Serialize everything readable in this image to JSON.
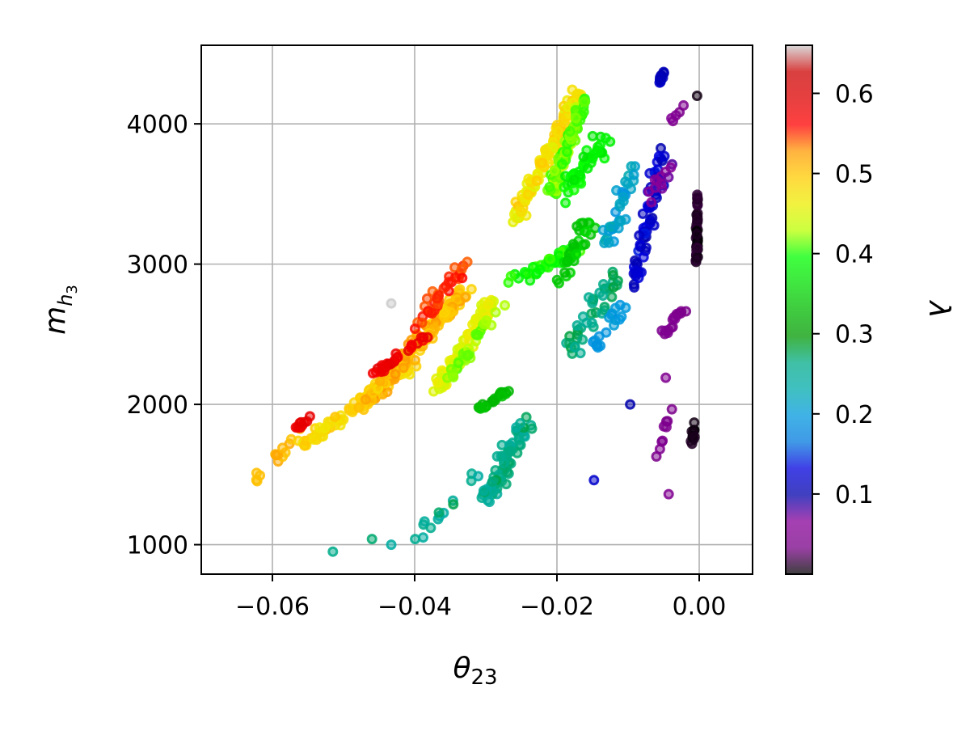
{
  "chart_data": {
    "type": "scatter",
    "xlabel_main": "θ",
    "xlabel_sub": "23",
    "ylabel_main": "m",
    "ylabel_sub": "h",
    "ylabel_subsub": "3",
    "xlim": [
      -0.07,
      0.0075
    ],
    "ylim": [
      790,
      4560
    ],
    "xticks": [
      -0.06,
      -0.04,
      -0.02,
      0.0
    ],
    "xtick_labels": [
      "−0.06",
      "−0.04",
      "−0.02",
      "0.00"
    ],
    "yticks": [
      1000,
      2000,
      3000,
      4000
    ],
    "ytick_labels": [
      "1000",
      "2000",
      "3000",
      "4000"
    ],
    "grid": true,
    "colorbar": {
      "label": "λ",
      "range": [
        0.0,
        0.66
      ],
      "ticks": [
        0.1,
        0.2,
        0.3,
        0.4,
        0.5,
        0.6
      ],
      "tick_labels": [
        "0.1",
        "0.2",
        "0.3",
        "0.4",
        "0.5",
        "0.6"
      ],
      "colormap": "nipy_spectral"
    },
    "clusters": [
      {
        "from": [
          -0.0625,
          1450
        ],
        "to": [
          -0.056,
          1830
        ],
        "n": 14,
        "spread": [
          0.0009,
          35
        ],
        "c": [
          0.5,
          0.52
        ]
      },
      {
        "from": [
          -0.0565,
          1820
        ],
        "to": [
          -0.0545,
          1950
        ],
        "n": 10,
        "spread": [
          0.0006,
          25
        ],
        "c": [
          0.57,
          0.59
        ]
      },
      {
        "from": [
          -0.056,
          1700
        ],
        "to": [
          -0.04,
          2300
        ],
        "n": 80,
        "spread": [
          0.0015,
          50
        ],
        "c": [
          0.47,
          0.5
        ]
      },
      {
        "from": [
          -0.047,
          2000
        ],
        "to": [
          -0.033,
          2800
        ],
        "n": 160,
        "spread": [
          0.0015,
          60
        ],
        "c": [
          0.48,
          0.53
        ]
      },
      {
        "from": [
          -0.046,
          2200
        ],
        "to": [
          -0.038,
          2500
        ],
        "n": 28,
        "spread": [
          0.0009,
          40
        ],
        "c": [
          0.57,
          0.59
        ]
      },
      {
        "from": [
          -0.04,
          2550
        ],
        "to": [
          -0.033,
          3000
        ],
        "n": 35,
        "spread": [
          0.0012,
          60
        ],
        "c": [
          0.54,
          0.56
        ]
      },
      {
        "from": [
          -0.037,
          2100
        ],
        "to": [
          -0.029,
          2750
        ],
        "n": 90,
        "spread": [
          0.0013,
          70
        ],
        "c": [
          0.44,
          0.47
        ]
      },
      {
        "from": [
          -0.035,
          2200
        ],
        "to": [
          -0.028,
          2700
        ],
        "n": 30,
        "spread": [
          0.0012,
          60
        ],
        "c": [
          0.41,
          0.43
        ]
      },
      {
        "from": [
          -0.031,
          1950
        ],
        "to": [
          -0.027,
          2100
        ],
        "n": 22,
        "spread": [
          0.0008,
          30
        ],
        "c": [
          0.32,
          0.34
        ]
      },
      {
        "from": [
          -0.026,
          3300
        ],
        "to": [
          -0.017,
          4230
        ],
        "n": 110,
        "spread": [
          0.0012,
          70
        ],
        "c": [
          0.45,
          0.5
        ]
      },
      {
        "from": [
          -0.021,
          3500
        ],
        "to": [
          -0.016,
          4200
        ],
        "n": 90,
        "spread": [
          0.0011,
          80
        ],
        "c": [
          0.4,
          0.43
        ]
      },
      {
        "from": [
          -0.019,
          3500
        ],
        "to": [
          -0.013,
          3900
        ],
        "n": 45,
        "spread": [
          0.0018,
          120
        ],
        "c": [
          0.37,
          0.4
        ]
      },
      {
        "from": [
          -0.026,
          2900
        ],
        "to": [
          -0.017,
          3100
        ],
        "n": 45,
        "spread": [
          0.0015,
          60
        ],
        "c": [
          0.38,
          0.41
        ]
      },
      {
        "from": [
          -0.02,
          2850
        ],
        "to": [
          -0.015,
          3350
        ],
        "n": 30,
        "spread": [
          0.0014,
          90
        ],
        "c": [
          0.33,
          0.36
        ]
      },
      {
        "from": [
          -0.03,
          1300
        ],
        "to": [
          -0.024,
          1900
        ],
        "n": 70,
        "spread": [
          0.0018,
          110
        ],
        "c": [
          0.24,
          0.28
        ]
      },
      {
        "from": [
          -0.04,
          1050
        ],
        "to": [
          -0.031,
          1500
        ],
        "n": 14,
        "spread": [
          0.0018,
          70
        ],
        "c": [
          0.23,
          0.28
        ]
      },
      {
        "from": [
          -0.018,
          2400
        ],
        "to": [
          -0.012,
          2900
        ],
        "n": 40,
        "spread": [
          0.0018,
          150
        ],
        "c": [
          0.25,
          0.29
        ]
      },
      {
        "from": [
          -0.015,
          2400
        ],
        "to": [
          -0.011,
          2700
        ],
        "n": 18,
        "spread": [
          0.0012,
          80
        ],
        "c": [
          0.19,
          0.21
        ]
      },
      {
        "from": [
          -0.013,
          3150
        ],
        "to": [
          -0.009,
          3700
        ],
        "n": 35,
        "spread": [
          0.0014,
          120
        ],
        "c": [
          0.19,
          0.23
        ]
      },
      {
        "from": [
          -0.009,
          2900
        ],
        "to": [
          -0.005,
          3800
        ],
        "n": 60,
        "spread": [
          0.0012,
          180
        ],
        "c": [
          0.1,
          0.14
        ]
      },
      {
        "from": [
          -0.006,
          4250
        ],
        "to": [
          -0.005,
          4370
        ],
        "n": 12,
        "spread": [
          0.0004,
          30
        ],
        "c": [
          0.1,
          0.12
        ]
      },
      {
        "from": [
          -0.0075,
          3400
        ],
        "to": [
          -0.004,
          3700
        ],
        "n": 12,
        "spread": [
          0.001,
          50
        ],
        "c": [
          0.06,
          0.08
        ]
      },
      {
        "from": [
          -0.004,
          4030
        ],
        "to": [
          -0.0015,
          4150
        ],
        "n": 5,
        "spread": [
          0.0005,
          30
        ],
        "c": [
          0.04,
          0.06
        ]
      },
      {
        "from": [
          -0.005,
          2500
        ],
        "to": [
          -0.002,
          2700
        ],
        "n": 16,
        "spread": [
          0.0008,
          40
        ],
        "c": [
          0.04,
          0.05
        ]
      },
      {
        "from": [
          -0.006,
          1600
        ],
        "to": [
          -0.003,
          2200
        ],
        "n": 9,
        "spread": [
          0.001,
          80
        ],
        "c": [
          0.04,
          0.05
        ]
      },
      {
        "from": [
          -0.0003,
          3000
        ],
        "to": [
          -0.0003,
          3500
        ],
        "n": 40,
        "spread": [
          0.00025,
          60
        ],
        "c": [
          0.0,
          0.015
        ]
      },
      {
        "from": [
          -0.001,
          1720
        ],
        "to": [
          -0.0005,
          1880
        ],
        "n": 10,
        "spread": [
          0.0004,
          30
        ],
        "c": [
          0.0,
          0.015
        ]
      }
    ],
    "points": [
      {
        "x": -0.0433,
        "y": 2720,
        "c": 0.66
      },
      {
        "x": -0.0515,
        "y": 950,
        "c": 0.26
      },
      {
        "x": -0.0433,
        "y": 1000,
        "c": 0.24
      },
      {
        "x": -0.046,
        "y": 1040,
        "c": 0.27
      },
      {
        "x": -0.0148,
        "y": 1460,
        "c": 0.12
      },
      {
        "x": -0.0097,
        "y": 2000,
        "c": 0.1
      },
      {
        "x": -0.0003,
        "y": 4200,
        "c": 0.005
      },
      {
        "x": -0.0007,
        "y": 1870,
        "c": 0.005
      },
      {
        "x": -0.0043,
        "y": 1360,
        "c": 0.05
      },
      {
        "x": -0.0047,
        "y": 2190,
        "c": 0.05
      }
    ]
  }
}
